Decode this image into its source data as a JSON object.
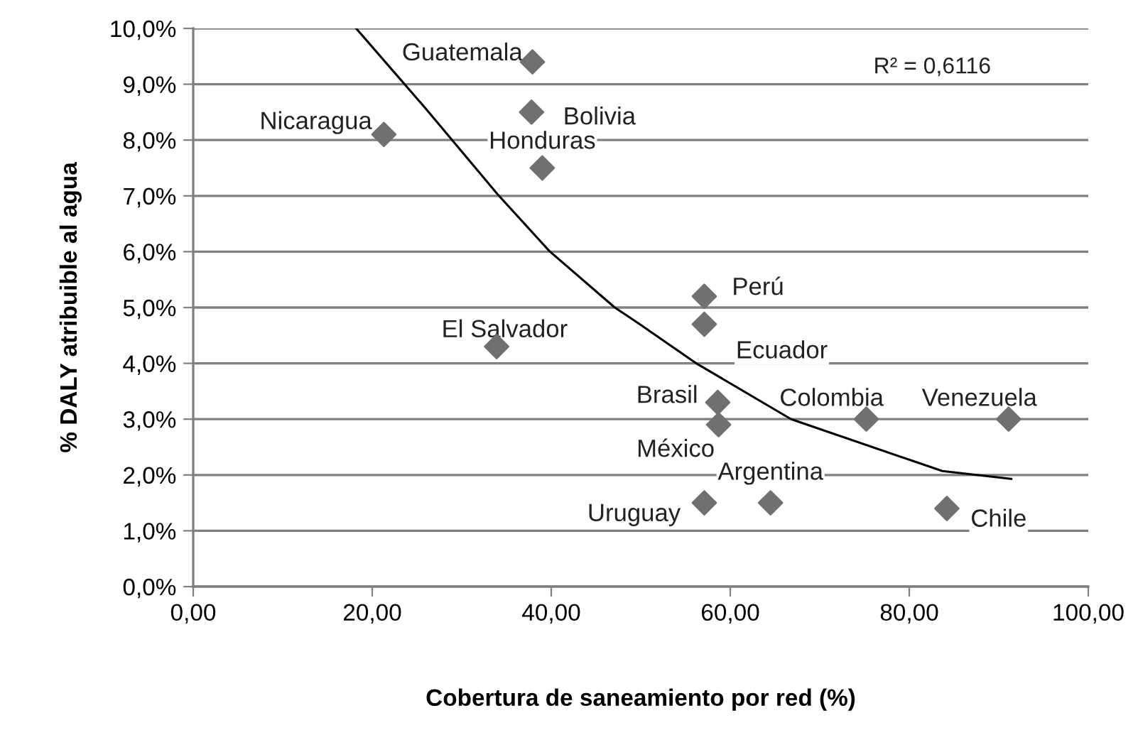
{
  "chart_data": {
    "type": "scatter",
    "xlabel": "Cobertura de saneamiento por red (%)",
    "ylabel": "% DALY atribuible al agua",
    "series": [
      {
        "color": "#707070",
        "marker": "diamond",
        "x": [
          37.9,
          21.3,
          37.8,
          39.0,
          33.9,
          57.1,
          57.1,
          58.6,
          58.7,
          75.2,
          91.1,
          57.1,
          64.5,
          84.2
        ],
        "values": [
          9.4,
          8.1,
          8.5,
          7.5,
          4.3,
          5.2,
          4.7,
          3.3,
          2.9,
          3.0,
          3.0,
          1.5,
          1.5,
          1.4
        ]
      },
      {
        "type": "line",
        "color": "#000000",
        "marker": "none",
        "x": [
          18.2,
          26.0,
          34.0,
          39.8,
          47.1,
          49.8,
          56.2,
          66.8,
          83.7,
          91.4
        ],
        "values": [
          10.0,
          8.56,
          7.03,
          6.01,
          5.0,
          4.71,
          4.0,
          3.0,
          2.07,
          1.93
        ]
      }
    ],
    "annotations": [
      {
        "text": "Guatemala",
        "x": 37.9,
        "y": 9.4
      },
      {
        "text": "Nicaragua",
        "x": 21.3,
        "y": 8.1
      },
      {
        "text": "Bolivia",
        "x": 37.8,
        "y": 8.5
      },
      {
        "text": "Honduras",
        "x": 39.0,
        "y": 7.5
      },
      {
        "text": "El Salvador",
        "x": 33.9,
        "y": 4.3
      },
      {
        "text": "Perú",
        "x": 57.1,
        "y": 5.2
      },
      {
        "text": "Ecuador",
        "x": 57.1,
        "y": 4.7
      },
      {
        "text": "Brasil",
        "x": 58.6,
        "y": 3.3
      },
      {
        "text": "México",
        "x": 58.7,
        "y": 2.9
      },
      {
        "text": "Colombia",
        "x": 75.2,
        "y": 3.0
      },
      {
        "text": "Venezuela",
        "x": 91.1,
        "y": 3.0
      },
      {
        "text": "Uruguay",
        "x": 57.1,
        "y": 1.5
      },
      {
        "text": "Argentina",
        "x": 64.5,
        "y": 1.5
      },
      {
        "text": "Chile",
        "x": 84.2,
        "y": 1.4
      },
      "R² = 0,6116"
    ],
    "xlim": [
      0,
      100
    ],
    "xticks": [
      {
        "value": 0,
        "label": "0,00"
      },
      {
        "value": 20,
        "label": "20,00"
      },
      {
        "value": 40,
        "label": "40,00"
      },
      {
        "value": 60,
        "label": "60,00"
      },
      {
        "value": 80,
        "label": "80,00"
      },
      {
        "value": 100,
        "label": "100,00"
      }
    ],
    "ylim": [
      0,
      10
    ],
    "yticks": [
      {
        "value": 0,
        "label": "0,0%"
      },
      {
        "value": 1,
        "label": "1,0%"
      },
      {
        "value": 2,
        "label": "2,0%"
      },
      {
        "value": 3,
        "label": "3,0%"
      },
      {
        "value": 4,
        "label": "4,0%"
      },
      {
        "value": 5,
        "label": "5,0%"
      },
      {
        "value": 6,
        "label": "6,0%"
      },
      {
        "value": 7,
        "label": "7,0%"
      },
      {
        "value": 8,
        "label": "8,0%"
      },
      {
        "value": 9,
        "label": "9,0%"
      },
      {
        "value": 10,
        "label": "10,0%"
      }
    ],
    "grid": "y",
    "legend": false
  }
}
